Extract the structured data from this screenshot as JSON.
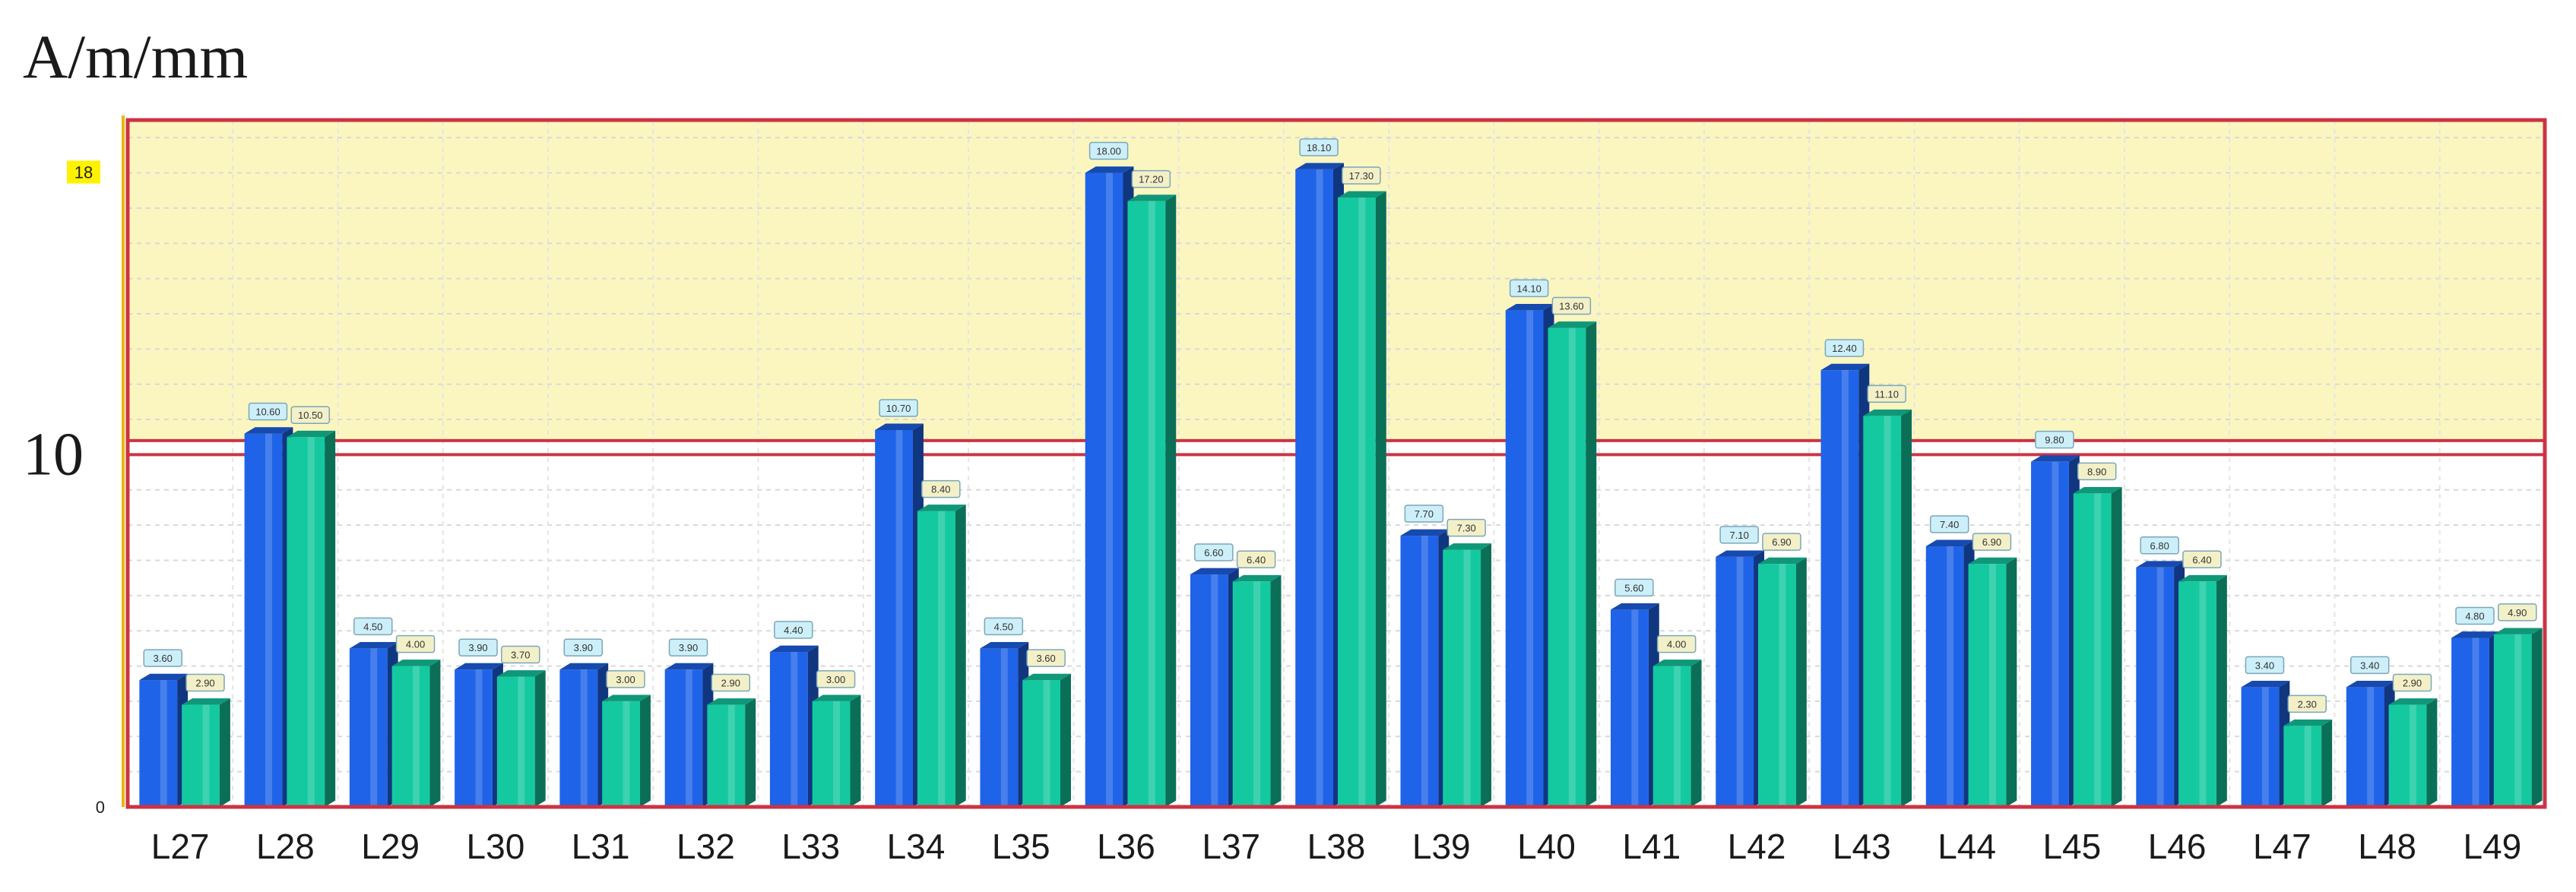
{
  "chart_data": {
    "type": "bar",
    "title": "A/m/mm",
    "xlabel": "",
    "ylabel": "",
    "ylim": [
      0,
      19.5
    ],
    "y_ticks": [
      {
        "value": 0,
        "label": "0",
        "style": "small"
      },
      {
        "value": 10,
        "label": "10",
        "style": "big"
      },
      {
        "value": 18,
        "label": "18",
        "style": "small-highlight"
      }
    ],
    "reference_lines": [
      10,
      10.4
    ],
    "highlight_band": {
      "from": 10.4,
      "to": 19.5,
      "color": "#fbf6c0"
    },
    "grid": true,
    "legend": "none",
    "colors": {
      "series1": "#1f63e8",
      "series2": "#14c9a0",
      "border": "#cc3344"
    },
    "categories": [
      "L27",
      "L28",
      "L29",
      "L30",
      "L31",
      "L32",
      "L33",
      "L34",
      "L35",
      "L36",
      "L37",
      "L38",
      "L39",
      "L40",
      "L41",
      "L42",
      "L43",
      "L44",
      "L45",
      "L46",
      "L47",
      "L48",
      "L49"
    ],
    "series": [
      {
        "values": [
          3.6,
          10.6,
          4.5,
          3.9,
          3.9,
          3.9,
          4.4,
          10.7,
          4.5,
          18.0,
          6.6,
          18.1,
          7.7,
          14.1,
          5.6,
          7.1,
          12.4,
          7.4,
          9.8,
          6.8,
          3.4,
          3.4,
          4.8
        ]
      },
      {
        "values": [
          2.9,
          10.5,
          4.0,
          3.7,
          3.0,
          2.9,
          3.0,
          8.4,
          3.6,
          17.2,
          6.4,
          17.3,
          7.3,
          13.6,
          4.0,
          6.9,
          11.1,
          6.9,
          8.9,
          6.4,
          2.3,
          2.9,
          4.9
        ]
      }
    ]
  }
}
